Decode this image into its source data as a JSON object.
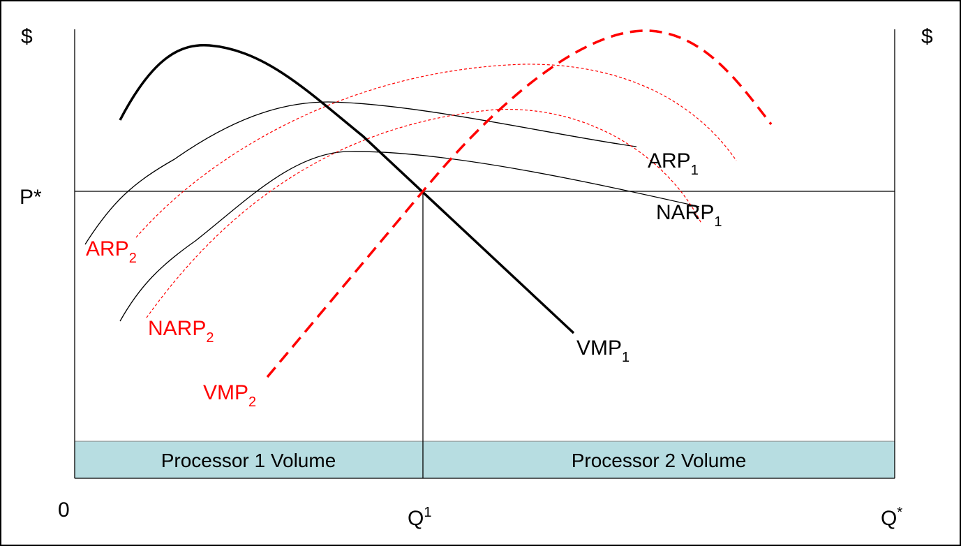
{
  "axes": {
    "left_unit": "$",
    "right_unit": "$",
    "price": "P*",
    "origin": "0",
    "q1": {
      "text": "Q",
      "sup": "1"
    },
    "qstar": {
      "text": "Q",
      "sup": "*"
    }
  },
  "curves": [
    {
      "text": "ARP",
      "sub": "1"
    },
    {
      "text": "NARP",
      "sub": "1"
    },
    {
      "text": "VMP",
      "sub": "1"
    },
    {
      "text": "ARP",
      "sub": "2"
    },
    {
      "text": "NARP",
      "sub": "2"
    },
    {
      "text": "VMP",
      "sub": "2"
    }
  ],
  "regions": [
    "Processor 1 Volume",
    "Processor 2 Volume"
  ]
}
